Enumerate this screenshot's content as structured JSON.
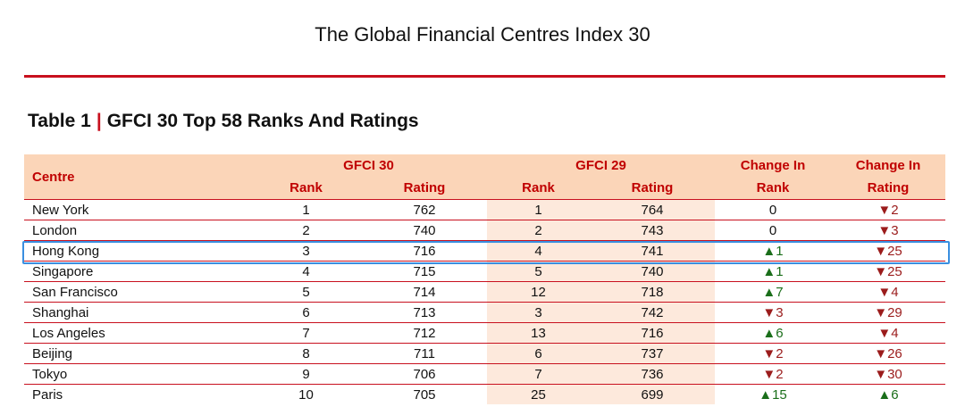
{
  "doc_title": "The Global Financial Centres Index 30",
  "table_label": "Table 1",
  "table_title": "GFCI 30 Top 58 Ranks And Ratings",
  "headers": {
    "centre": "Centre",
    "gfci30": "GFCI 30",
    "gfci29": "GFCI 29",
    "change1": "Change In",
    "change2": "Change In",
    "rank": "Rank",
    "rating": "Rating"
  },
  "colors": {
    "accent": "#c8101e",
    "header_bg": "#fbd5b8",
    "up": "#1a6e1a",
    "down": "#9b1c1c",
    "highlight": "#3a8fe0"
  },
  "rows": [
    {
      "centre": "New York",
      "r30": "1",
      "rt30": "762",
      "r29": "1",
      "rt29": "764",
      "cr": "0",
      "crd": "",
      "crt": "2",
      "crtd": "down"
    },
    {
      "centre": "London",
      "r30": "2",
      "rt30": "740",
      "r29": "2",
      "rt29": "743",
      "cr": "0",
      "crd": "",
      "crt": "3",
      "crtd": "down"
    },
    {
      "centre": "Hong Kong",
      "r30": "3",
      "rt30": "716",
      "r29": "4",
      "rt29": "741",
      "cr": "1",
      "crd": "up",
      "crt": "25",
      "crtd": "down"
    },
    {
      "centre": "Singapore",
      "r30": "4",
      "rt30": "715",
      "r29": "5",
      "rt29": "740",
      "cr": "1",
      "crd": "up",
      "crt": "25",
      "crtd": "down"
    },
    {
      "centre": "San Francisco",
      "r30": "5",
      "rt30": "714",
      "r29": "12",
      "rt29": "718",
      "cr": "7",
      "crd": "up",
      "crt": "4",
      "crtd": "down"
    },
    {
      "centre": "Shanghai",
      "r30": "6",
      "rt30": "713",
      "r29": "3",
      "rt29": "742",
      "cr": "3",
      "crd": "down",
      "crt": "29",
      "crtd": "down"
    },
    {
      "centre": "Los Angeles",
      "r30": "7",
      "rt30": "712",
      "r29": "13",
      "rt29": "716",
      "cr": "6",
      "crd": "up",
      "crt": "4",
      "crtd": "down"
    },
    {
      "centre": "Beijing",
      "r30": "8",
      "rt30": "711",
      "r29": "6",
      "rt29": "737",
      "cr": "2",
      "crd": "down",
      "crt": "26",
      "crtd": "down"
    },
    {
      "centre": "Tokyo",
      "r30": "9",
      "rt30": "706",
      "r29": "7",
      "rt29": "736",
      "cr": "2",
      "crd": "down",
      "crt": "30",
      "crtd": "down"
    },
    {
      "centre": "Paris",
      "r30": "10",
      "rt30": "705",
      "r29": "25",
      "rt29": "699",
      "cr": "15",
      "crd": "up",
      "crt": "6",
      "crtd": "up"
    }
  ]
}
